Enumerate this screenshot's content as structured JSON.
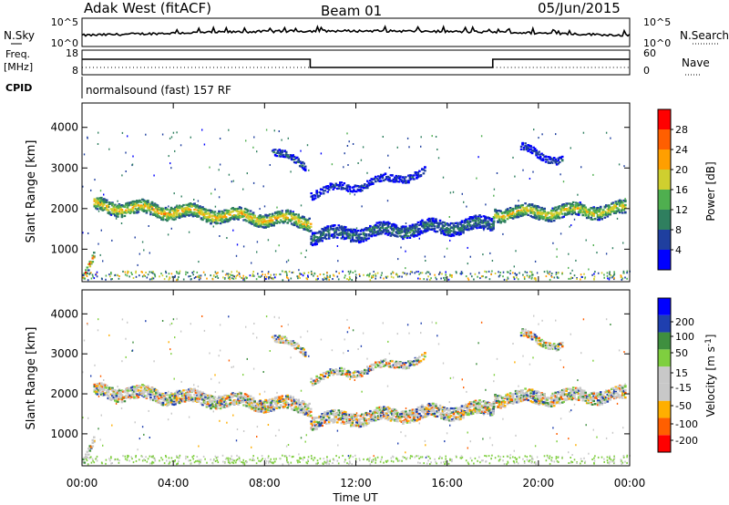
{
  "header": {
    "station": "Adak West (fitACF)",
    "beam": "Beam 01",
    "date": "05/Jun/2015"
  },
  "left_labels": {
    "nsky": "N.Sky",
    "freq": "Freq.",
    "freq_unit": "[MHz]",
    "cpid": "CPID"
  },
  "right_labels": {
    "nsearch": "N.Search",
    "nave": "Nave"
  },
  "noise_ticks_left": [
    "10^5",
    "10^0"
  ],
  "noise_ticks_right": [
    "10^5",
    "10^0"
  ],
  "freq_ticks": [
    "18",
    "8"
  ],
  "nave_ticks": [
    "60",
    "0"
  ],
  "cpid_text": "normalsound (fast) 157 RF",
  "colors": {
    "power": [
      "#0000ff",
      "#1f3f9f",
      "#2f7f5f",
      "#4faf4f",
      "#cfcf2f",
      "#ff9f00",
      "#ff5f00",
      "#ff0000"
    ],
    "velocity": [
      "#ff0000",
      "#ff5f00",
      "#ffaf00",
      "#c8c8c8",
      "#c8c8c8",
      "#7fcf3f",
      "#3f8f3f",
      "#1f3faf",
      "#0000ff"
    ],
    "ground_grey": "#c0c0c0"
  },
  "chart_data": [
    {
      "type": "heatmap",
      "panel": "power",
      "ylabel": "Slant Range [km]",
      "yticks": [
        "4000",
        "3000",
        "2000",
        "1000"
      ],
      "ylim": [
        200,
        4600
      ],
      "colorbar_label": "Power [dB]",
      "colorbar_ticks": [
        "28",
        "24",
        "20",
        "16",
        "12",
        "8",
        "4"
      ],
      "colorbar_range": [
        0,
        32
      ],
      "features": [
        {
          "name": "main_echo_morning",
          "t_start": 0.5,
          "t_end": 10.0,
          "range_start": 2100,
          "range_end": 1700,
          "power_db": 22
        },
        {
          "name": "main_echo_midday",
          "t_start": 10.0,
          "t_end": 18.0,
          "range_start": 1350,
          "range_end": 1650,
          "power_db": 10
        },
        {
          "name": "main_echo_evening",
          "t_start": 18.0,
          "t_end": 23.8,
          "range_start": 1900,
          "range_end": 2000,
          "power_db": 20
        },
        {
          "name": "far_echo",
          "t_start": 8.3,
          "t_end": 9.8,
          "range_start": 3400,
          "range_end": 3100,
          "power_db": 8
        },
        {
          "name": "far_echo_2",
          "t_start": 19.2,
          "t_end": 21.0,
          "range_start": 3500,
          "range_end": 3200,
          "power_db": 6
        },
        {
          "name": "midday_upper",
          "t_start": 10.0,
          "t_end": 15.0,
          "range_start": 2400,
          "range_end": 2900,
          "power_db": 6
        },
        {
          "name": "near_range",
          "t_start": 0.0,
          "t_end": 0.5,
          "range_start": 300,
          "range_end": 800,
          "power_db": 28
        }
      ]
    },
    {
      "type": "heatmap",
      "panel": "velocity",
      "ylabel": "Slant Range [km]",
      "yticks": [
        "4000",
        "3000",
        "2000",
        "1000"
      ],
      "ylim": [
        200,
        4600
      ],
      "colorbar_label": "Velocity [m s^-1]",
      "colorbar_ticks": [
        "200",
        "100",
        "50",
        "15",
        "-15",
        "-50",
        "-100",
        "-200"
      ],
      "colorbar_range": [
        -250,
        250
      ],
      "xlabel": "Time UT",
      "xticks": [
        "00:00",
        "04:00",
        "08:00",
        "12:00",
        "16:00",
        "20:00",
        "00:00"
      ],
      "xlim": [
        0,
        24
      ]
    }
  ]
}
